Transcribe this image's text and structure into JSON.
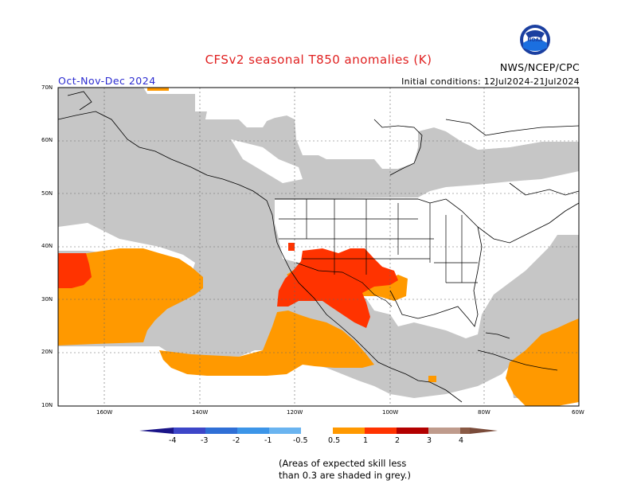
{
  "header": {
    "title": "CFSv2 seasonal T850 anomalies (K)",
    "period": "Oct-Nov-Dec 2024",
    "agency": "NWS/NCEP/CPC",
    "initial_conditions": "Initial conditions: 12Jul2024-21Jul2024",
    "logo_text": "NOAA"
  },
  "map": {
    "region": "North America and adjacent Pacific/Atlantic",
    "lat_labels": [
      "70N",
      "60N",
      "50N",
      "40N",
      "30N",
      "20N",
      "10N"
    ],
    "lon_labels": [
      "160W",
      "140W",
      "120W",
      "100W",
      "80W",
      "60W"
    ],
    "lon_range": [
      -170,
      -60
    ],
    "lat_range": [
      10,
      70
    ],
    "features": {
      "orange_band_pacific": "0.5 to 1",
      "red_southwest_us": "1 to 2",
      "red_pacific_west": "1 to 2",
      "orange_caribbean": "0.5 to 1",
      "grey_low_skill": "skill < 0.3"
    }
  },
  "legend": {
    "labels": [
      "-4",
      "-3",
      "-2",
      "-1",
      "-0.5",
      "0.5",
      "1",
      "2",
      "3",
      "4"
    ],
    "colors": [
      "#2a1fa8",
      "#3d46c8",
      "#2f6fd6",
      "#3c95e8",
      "#6ab4f0",
      "#ffffff",
      "#ff9900",
      "#ff3300",
      "#b30000",
      "#bf9b8c",
      "#7a4b3a"
    ]
  },
  "colors": {
    "grey": "#c6c6c6",
    "orange": "#ff9900",
    "red": "#ff3300",
    "title_red": "#e02020",
    "period_blue": "#2b2bd0"
  },
  "note": {
    "line1": "(Areas of expected skill less",
    "line2": "than 0.3 are shaded in grey.)"
  }
}
